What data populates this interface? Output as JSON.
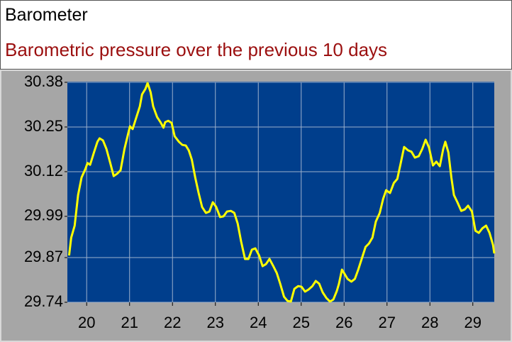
{
  "chart_data": {
    "type": "line",
    "title": "Barometer",
    "subtitle": "Barometric pressure over the previous 10 days",
    "color": "#ffff00",
    "grid": true,
    "xlim": [
      19.55,
      29.5
    ],
    "xticks": [
      20,
      21,
      22,
      23,
      24,
      25,
      26,
      27,
      28,
      29
    ],
    "ylim": [
      29.74,
      30.38
    ],
    "yticks": [
      29.74,
      29.87,
      29.99,
      30.12,
      30.25,
      30.38
    ],
    "x": [
      19.59,
      19.64,
      19.72,
      19.8,
      19.88,
      19.97,
      20.02,
      20.08,
      20.17,
      20.25,
      20.3,
      20.38,
      20.46,
      20.55,
      20.63,
      20.71,
      20.79,
      20.88,
      20.96,
      21.01,
      21.07,
      21.16,
      21.24,
      21.29,
      21.37,
      21.42,
      21.49,
      21.55,
      21.64,
      21.72,
      21.79,
      21.83,
      21.9,
      21.98,
      22.05,
      22.15,
      22.23,
      22.31,
      22.38,
      22.45,
      22.53,
      22.61,
      22.69,
      22.78,
      22.86,
      22.94,
      23.02,
      23.11,
      23.19,
      23.27,
      23.36,
      23.44,
      23.52,
      23.6,
      23.69,
      23.77,
      23.85,
      23.93,
      24.02,
      24.1,
      24.18,
      24.26,
      24.35,
      24.43,
      24.51,
      24.6,
      24.68,
      24.76,
      24.84,
      24.93,
      25.01,
      25.09,
      25.17,
      25.26,
      25.34,
      25.42,
      25.5,
      25.59,
      25.67,
      25.75,
      25.83,
      25.88,
      25.95,
      26.0,
      26.08,
      26.17,
      26.25,
      26.33,
      26.41,
      26.5,
      26.58,
      26.66,
      26.74,
      26.83,
      26.91,
      26.98,
      27.07,
      27.16,
      27.24,
      27.32,
      27.4,
      27.49,
      27.57,
      27.65,
      27.74,
      27.82,
      27.9,
      27.98,
      28.07,
      28.15,
      28.23,
      28.31,
      28.36,
      28.43,
      28.5,
      28.56,
      28.64,
      28.73,
      28.81,
      28.89,
      28.98,
      29.06,
      29.14,
      29.22,
      29.31,
      29.39,
      29.47,
      29.5
    ],
    "values": [
      29.876,
      29.928,
      29.963,
      30.052,
      30.103,
      30.128,
      30.145,
      30.14,
      30.176,
      30.207,
      30.217,
      30.211,
      30.186,
      30.145,
      30.107,
      30.114,
      30.124,
      30.186,
      30.227,
      30.252,
      30.244,
      30.279,
      30.31,
      30.345,
      30.361,
      30.378,
      30.351,
      30.31,
      30.279,
      30.264,
      30.248,
      30.264,
      30.268,
      30.262,
      30.223,
      30.207,
      30.198,
      30.196,
      30.182,
      30.155,
      30.103,
      30.058,
      30.017,
      30.0,
      30.004,
      30.031,
      30.017,
      29.988,
      29.99,
      30.004,
      30.006,
      30.0,
      29.969,
      29.917,
      29.866,
      29.866,
      29.893,
      29.897,
      29.876,
      29.845,
      29.851,
      29.866,
      29.845,
      29.825,
      29.794,
      29.756,
      29.744,
      29.742,
      29.779,
      29.787,
      29.785,
      29.771,
      29.777,
      29.787,
      29.802,
      29.794,
      29.769,
      29.752,
      29.742,
      29.748,
      29.773,
      29.794,
      29.835,
      29.825,
      29.808,
      29.8,
      29.808,
      29.835,
      29.866,
      29.901,
      29.911,
      29.928,
      29.975,
      30.0,
      30.041,
      30.066,
      30.058,
      30.087,
      30.099,
      30.145,
      30.192,
      30.182,
      30.178,
      30.161,
      30.165,
      30.186,
      30.213,
      30.19,
      30.138,
      30.149,
      30.136,
      30.186,
      30.207,
      30.176,
      30.103,
      30.052,
      30.031,
      30.006,
      30.01,
      30.021,
      30.004,
      29.948,
      29.942,
      29.955,
      29.963,
      29.942,
      29.907,
      29.882
    ]
  }
}
